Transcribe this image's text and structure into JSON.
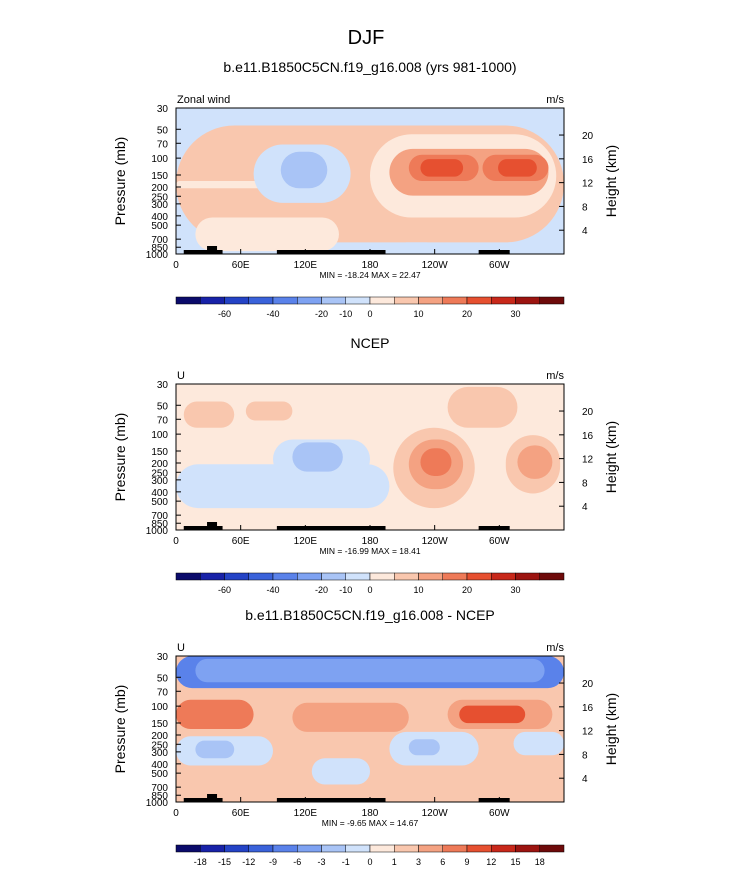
{
  "page_title": "DJF",
  "chart_data": [
    {
      "type": "heatmap",
      "title": "b.e11.B1850C5CN.f19_g16.008 (yrs 981-1000)",
      "left_label": "Zonal wind",
      "units": "m/s",
      "ylabel": "Pressure (mb)",
      "ylabel_right": "Height (km)",
      "x_ticks": [
        "0",
        "60E",
        "120E",
        "180",
        "120W",
        "60W"
      ],
      "y_ticks": [
        "30",
        "50",
        "70",
        "100",
        "150",
        "200",
        "250",
        "300",
        "400",
        "500",
        "700",
        "850",
        "1000"
      ],
      "height_ticks": [
        "20",
        "16",
        "12",
        "8",
        "4"
      ],
      "min_max": "MIN = -18.24  MAX = 22.47",
      "colorbar": {
        "labels": [
          "-60",
          "-40",
          "-20",
          "-10",
          "0",
          "10",
          "20",
          "30"
        ],
        "colors": [
          "#0b0b6b",
          "#1822a8",
          "#2443c6",
          "#3a62da",
          "#5a82ea",
          "#7ea2f2",
          "#a9c4f6",
          "#d0e2fb",
          "#fde9dc",
          "#f9c7ae",
          "#f4a282",
          "#ee7a58",
          "#e65030",
          "#c8281a",
          "#9c1410",
          "#6e0a0a"
        ]
      }
    },
    {
      "type": "heatmap",
      "title": "NCEP",
      "left_label": "U",
      "units": "m/s",
      "ylabel": "Pressure (mb)",
      "ylabel_right": "Height (km)",
      "x_ticks": [
        "0",
        "60E",
        "120E",
        "180",
        "120W",
        "60W"
      ],
      "y_ticks": [
        "30",
        "50",
        "70",
        "100",
        "150",
        "200",
        "250",
        "300",
        "400",
        "500",
        "700",
        "850",
        "1000"
      ],
      "height_ticks": [
        "20",
        "16",
        "12",
        "8",
        "4"
      ],
      "min_max": "MIN = -16.99  MAX = 18.41",
      "colorbar": {
        "labels": [
          "-60",
          "-40",
          "-20",
          "-10",
          "0",
          "10",
          "20",
          "30"
        ],
        "colors": [
          "#0b0b6b",
          "#1822a8",
          "#2443c6",
          "#3a62da",
          "#5a82ea",
          "#7ea2f2",
          "#a9c4f6",
          "#d0e2fb",
          "#fde9dc",
          "#f9c7ae",
          "#f4a282",
          "#ee7a58",
          "#e65030",
          "#c8281a",
          "#9c1410",
          "#6e0a0a"
        ]
      }
    },
    {
      "type": "heatmap",
      "title": "b.e11.B1850C5CN.f19_g16.008 - NCEP",
      "left_label": "U",
      "units": "m/s",
      "ylabel": "Pressure (mb)",
      "ylabel_right": "Height (km)",
      "x_ticks": [
        "0",
        "60E",
        "120E",
        "180",
        "120W",
        "60W"
      ],
      "y_ticks": [
        "30",
        "50",
        "70",
        "100",
        "150",
        "200",
        "250",
        "300",
        "400",
        "500",
        "700",
        "850",
        "1000"
      ],
      "height_ticks": [
        "20",
        "16",
        "12",
        "8",
        "4"
      ],
      "min_max": "MIN = -9.65  MAX = 14.67",
      "colorbar": {
        "labels": [
          "-18",
          "-15",
          "-12",
          "-9",
          "-6",
          "-3",
          "-1",
          "0",
          "1",
          "3",
          "6",
          "9",
          "12",
          "15",
          "18"
        ],
        "colors": [
          "#0b0b6b",
          "#1822a8",
          "#2443c6",
          "#3a62da",
          "#5a82ea",
          "#7ea2f2",
          "#a9c4f6",
          "#d0e2fb",
          "#fde9dc",
          "#f9c7ae",
          "#f4a282",
          "#ee7a58",
          "#e65030",
          "#c8281a",
          "#9c1410",
          "#6e0a0a"
        ]
      }
    }
  ]
}
